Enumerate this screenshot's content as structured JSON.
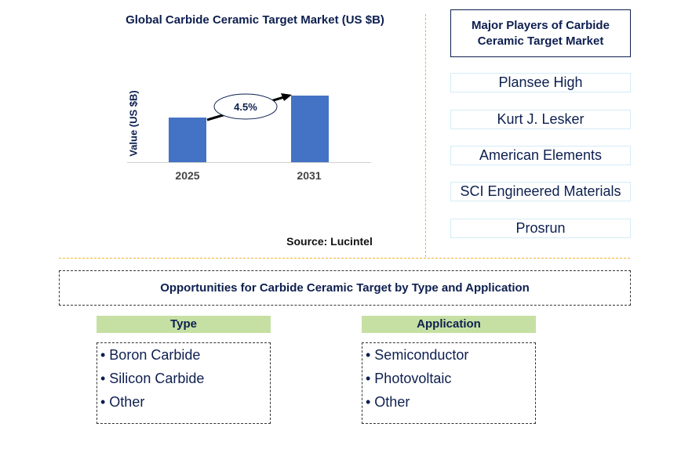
{
  "chart_data": {
    "type": "bar",
    "title": "Global Carbide Ceramic Target Market (US $B)",
    "xlabel": "",
    "ylabel": "Value (US $B)",
    "categories": [
      "2025",
      "2031"
    ],
    "values": [
      0.67,
      1.0
    ],
    "annotation": "4.5%",
    "source": "Source: Lucintel",
    "bar_color": "#4472c4"
  },
  "players": {
    "title": "Major Players of Carbide Ceramic Target Market",
    "items": [
      "Plansee High",
      "Kurt J. Lesker",
      "American Elements",
      "SCI Engineered Materials",
      "Prosrun"
    ]
  },
  "opportunities": {
    "title": "Opportunities for Carbide Ceramic Target by Type and Application",
    "type": {
      "label": "Type",
      "items": [
        "• Boron Carbide",
        "• Silicon Carbide",
        "• Other"
      ]
    },
    "application": {
      "label": "Application",
      "items": [
        "• Semiconductor",
        "• Photovoltaic",
        "• Other"
      ]
    }
  }
}
